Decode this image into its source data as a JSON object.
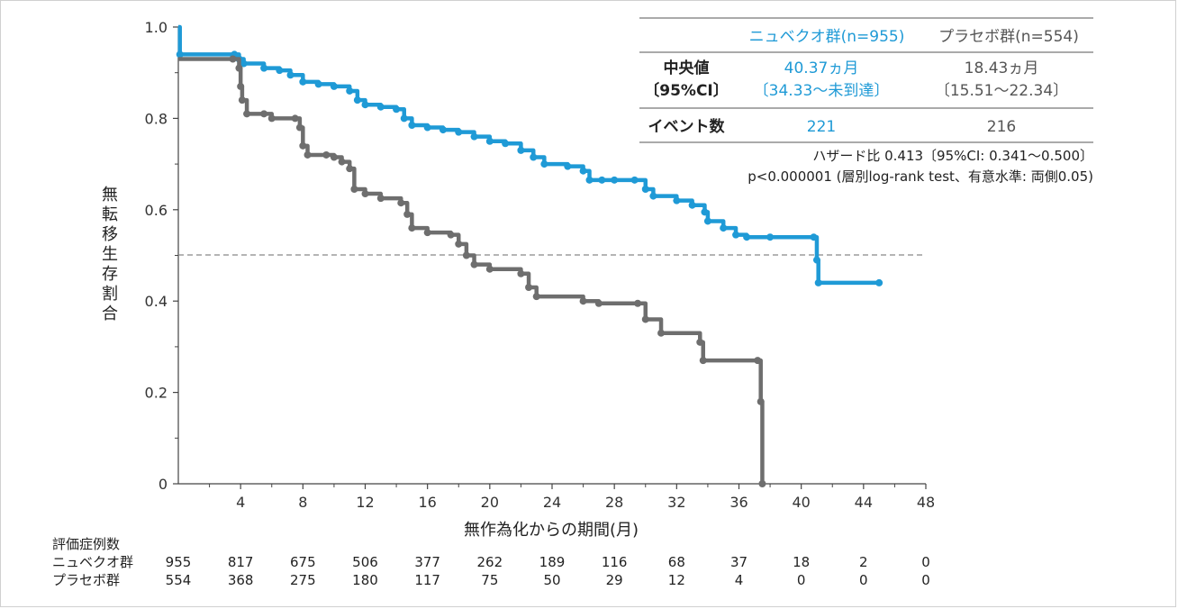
{
  "chart_data": {
    "type": "line",
    "subtype": "kaplan-meier",
    "ylabel": "無転移生存割合",
    "xlabel": "無作為化からの期間(月)",
    "x_ticks": [
      "4",
      "8",
      "12",
      "16",
      "20",
      "24",
      "28",
      "32",
      "36",
      "40",
      "44",
      "48"
    ],
    "y_ticks": [
      "0",
      "0.2",
      "0.4",
      "0.6",
      "0.8",
      "1.0"
    ],
    "xlim": [
      0,
      48
    ],
    "ylim": [
      0,
      1.0
    ],
    "reference_line": 0.5,
    "series": [
      {
        "name": "ニュベクオ群(n=955)",
        "color": "#1f9ad6",
        "points": [
          [
            0,
            1.0
          ],
          [
            0.1,
            0.94
          ],
          [
            3.6,
            0.94
          ],
          [
            3.9,
            0.93
          ],
          [
            4.2,
            0.92
          ],
          [
            5.5,
            0.91
          ],
          [
            6.5,
            0.905
          ],
          [
            7.2,
            0.895
          ],
          [
            8.0,
            0.88
          ],
          [
            9.0,
            0.875
          ],
          [
            10.0,
            0.87
          ],
          [
            11.0,
            0.86
          ],
          [
            11.5,
            0.84
          ],
          [
            12.0,
            0.83
          ],
          [
            13.0,
            0.825
          ],
          [
            14.0,
            0.82
          ],
          [
            14.5,
            0.8
          ],
          [
            15.0,
            0.785
          ],
          [
            16.0,
            0.78
          ],
          [
            17.0,
            0.775
          ],
          [
            18.0,
            0.77
          ],
          [
            19.0,
            0.76
          ],
          [
            20.0,
            0.75
          ],
          [
            21.0,
            0.745
          ],
          [
            22.0,
            0.73
          ],
          [
            22.8,
            0.715
          ],
          [
            23.5,
            0.7
          ],
          [
            25.0,
            0.695
          ],
          [
            26.0,
            0.685
          ],
          [
            26.4,
            0.665
          ],
          [
            27.2,
            0.665
          ],
          [
            28.0,
            0.665
          ],
          [
            29.3,
            0.665
          ],
          [
            30.0,
            0.645
          ],
          [
            30.5,
            0.63
          ],
          [
            32.0,
            0.62
          ],
          [
            33.0,
            0.61
          ],
          [
            33.8,
            0.595
          ],
          [
            34.0,
            0.575
          ],
          [
            35.0,
            0.56
          ],
          [
            35.8,
            0.545
          ],
          [
            36.5,
            0.54
          ],
          [
            38.0,
            0.54
          ],
          [
            40.8,
            0.54
          ],
          [
            41.0,
            0.49
          ],
          [
            41.1,
            0.44
          ],
          [
            45.0,
            0.44
          ]
        ]
      },
      {
        "name": "プラセボ群(n=554)",
        "color": "#6e6e6e",
        "points": [
          [
            0,
            0.93
          ],
          [
            3.5,
            0.93
          ],
          [
            3.9,
            0.91
          ],
          [
            4.0,
            0.87
          ],
          [
            4.1,
            0.84
          ],
          [
            4.4,
            0.81
          ],
          [
            5.5,
            0.81
          ],
          [
            6.0,
            0.8
          ],
          [
            7.5,
            0.8
          ],
          [
            7.8,
            0.78
          ],
          [
            8.0,
            0.74
          ],
          [
            8.3,
            0.72
          ],
          [
            9.5,
            0.72
          ],
          [
            10.0,
            0.715
          ],
          [
            10.5,
            0.705
          ],
          [
            11.0,
            0.69
          ],
          [
            11.3,
            0.645
          ],
          [
            12.0,
            0.635
          ],
          [
            13.0,
            0.625
          ],
          [
            14.3,
            0.615
          ],
          [
            14.7,
            0.59
          ],
          [
            15.0,
            0.56
          ],
          [
            16.0,
            0.55
          ],
          [
            17.5,
            0.545
          ],
          [
            18.0,
            0.525
          ],
          [
            18.5,
            0.5
          ],
          [
            19.0,
            0.48
          ],
          [
            20.0,
            0.47
          ],
          [
            22.0,
            0.46
          ],
          [
            22.5,
            0.43
          ],
          [
            23.0,
            0.41
          ],
          [
            26.0,
            0.4
          ],
          [
            27.0,
            0.395
          ],
          [
            29.5,
            0.395
          ],
          [
            30.0,
            0.36
          ],
          [
            31.0,
            0.33
          ],
          [
            33.5,
            0.31
          ],
          [
            33.7,
            0.27
          ],
          [
            37.2,
            0.27
          ],
          [
            37.4,
            0.18
          ],
          [
            37.5,
            0.0
          ]
        ]
      }
    ]
  },
  "summary_table": {
    "header_treatment": "ニュベクオ群(n=955)",
    "header_placebo": "プラセボ群(n=554)",
    "row1_label_line1": "中央値",
    "row1_label_line2": "〔95%CI〕",
    "row1_treatment_line1": "40.37ヵ月",
    "row1_treatment_line2": "〔34.33〜未到達〕",
    "row1_placebo_line1": "18.43ヵ月",
    "row1_placebo_line2": "〔15.51〜22.34〕",
    "row2_label": "イベント数",
    "row2_treatment": "221",
    "row2_placebo": "216",
    "note1": "ハザード比 0.413〔95%CI: 0.341〜0.500〕",
    "note2": "p<0.000001 (層別log-rank test、有意水準: 両側0.05)"
  },
  "risk_table": {
    "title": "評価症例数",
    "rows": [
      {
        "label": "ニュベクオ群",
        "values": [
          "955",
          "817",
          "675",
          "506",
          "377",
          "262",
          "189",
          "116",
          "68",
          "37",
          "18",
          "2",
          "0"
        ]
      },
      {
        "label": "プラセボ群",
        "values": [
          "554",
          "368",
          "275",
          "180",
          "117",
          "75",
          "50",
          "29",
          "12",
          "4",
          "0",
          "0",
          "0"
        ]
      }
    ]
  },
  "colors": {
    "treatment": "#1f9ad6",
    "placebo": "#6e6e6e",
    "reference": "#888888"
  }
}
